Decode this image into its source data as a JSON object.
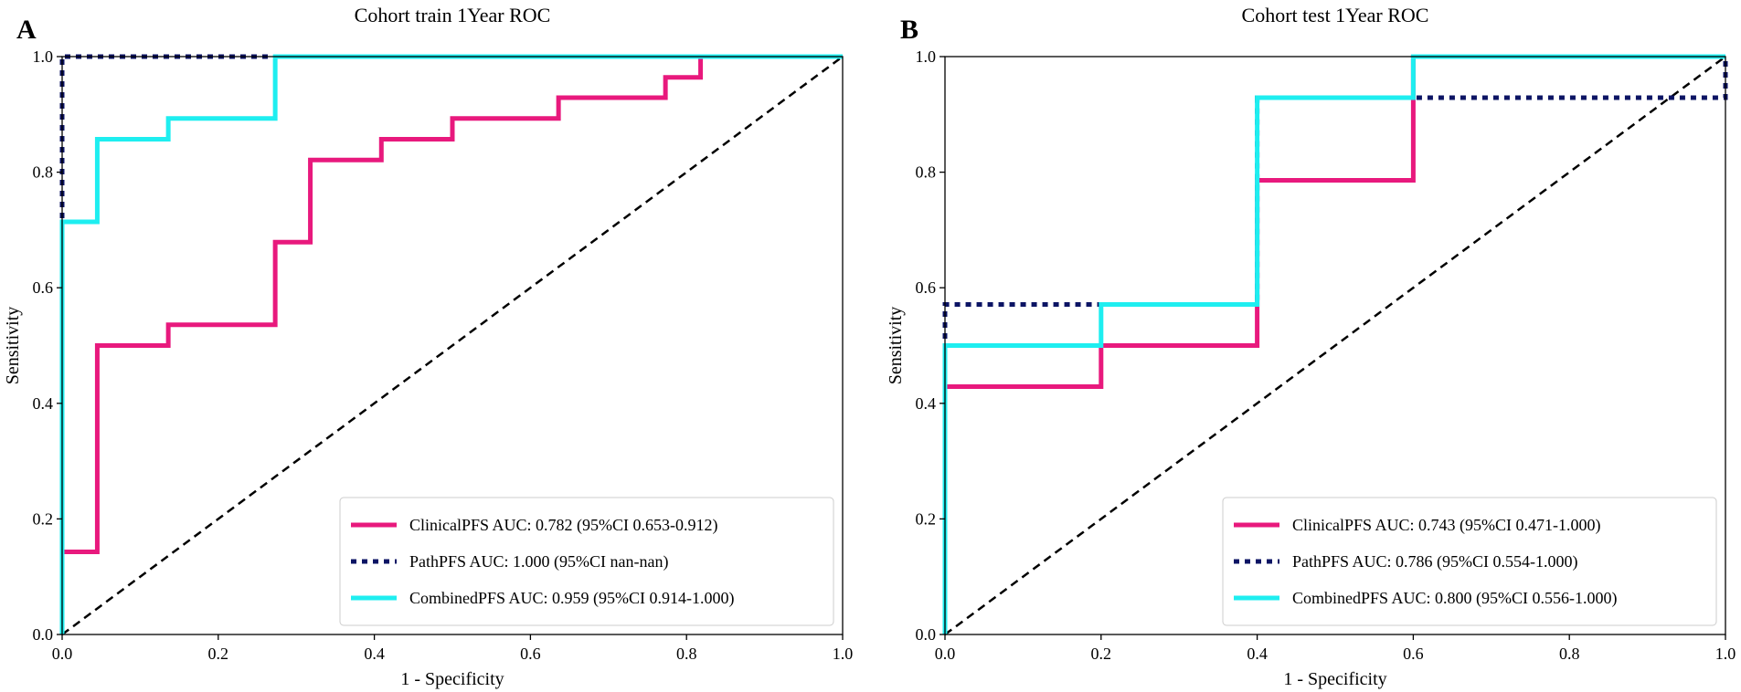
{
  "chart_data": [
    {
      "type": "line",
      "panel_label": "A",
      "title": "Cohort train 1Year ROC",
      "xlabel": "1 - Specificity",
      "ylabel": "Sensitivity",
      "xlim": [
        0.0,
        1.0
      ],
      "ylim": [
        0.0,
        1.0
      ],
      "x_ticks": [
        "0.0",
        "0.2",
        "0.4",
        "0.6",
        "0.8",
        "1.0"
      ],
      "y_ticks": [
        "0.0",
        "0.2",
        "0.4",
        "0.6",
        "0.8",
        "1.0"
      ],
      "legend_position": "lower-right",
      "series": [
        {
          "name": "ClinicalPFS AUC: 0.782 (95%CI 0.653-0.912)",
          "color": "#e8197d",
          "dash": "solid",
          "x": [
            0,
            0,
            0.045,
            0.045,
            0.136,
            0.136,
            0.273,
            0.273,
            0.318,
            0.318,
            0.409,
            0.409,
            0.5,
            0.5,
            0.636,
            0.636,
            0.773,
            0.773,
            0.818,
            0.818
          ],
          "y": [
            0,
            0.143,
            0.143,
            0.5,
            0.5,
            0.536,
            0.536,
            0.679,
            0.679,
            0.821,
            0.821,
            0.857,
            0.857,
            0.893,
            0.893,
            0.929,
            0.929,
            0.964,
            0.964,
            1.0
          ]
        },
        {
          "name": "PathPFS AUC: 1.000 (95%CI nan-nan)",
          "color": "#0c1464",
          "dash": "dotted",
          "x": [
            0,
            0,
            0,
            1.0
          ],
          "y": [
            0,
            0.714,
            1.0,
            1.0
          ]
        },
        {
          "name": "CombinedPFS AUC: 0.959 (95%CI 0.914-1.000)",
          "color": "#1eeef0",
          "dash": "solid",
          "x": [
            0,
            0,
            0.045,
            0.045,
            0.136,
            0.136,
            0.273,
            0.273,
            1.0
          ],
          "y": [
            0,
            0.714,
            0.714,
            0.857,
            0.857,
            0.893,
            0.893,
            1.0,
            1.0
          ]
        },
        {
          "name": "",
          "color": "#000000",
          "dash": "dashed",
          "x": [
            0,
            1.0
          ],
          "y": [
            0,
            1.0
          ]
        }
      ]
    },
    {
      "type": "line",
      "panel_label": "B",
      "title": "Cohort test 1Year ROC",
      "xlabel": "1 - Specificity",
      "ylabel": "Sensitivity",
      "xlim": [
        0.0,
        1.0
      ],
      "ylim": [
        0.0,
        1.0
      ],
      "x_ticks": [
        "0.0",
        "0.2",
        "0.4",
        "0.6",
        "0.8",
        "1.0"
      ],
      "y_ticks": [
        "0.0",
        "0.2",
        "0.4",
        "0.6",
        "0.8",
        "1.0"
      ],
      "legend_position": "lower-right",
      "series": [
        {
          "name": "ClinicalPFS AUC: 0.743 (95%CI 0.471-1.000)",
          "color": "#e8197d",
          "dash": "solid",
          "x": [
            0,
            0,
            0.2,
            0.2,
            0.4,
            0.4,
            0.6,
            0.6,
            1.0
          ],
          "y": [
            0,
            0.429,
            0.429,
            0.5,
            0.5,
            0.786,
            0.786,
            1.0,
            1.0
          ]
        },
        {
          "name": "PathPFS AUC: 0.786 (95%CI 0.554-1.000)",
          "color": "#0c1464",
          "dash": "dotted",
          "x": [
            0,
            0,
            0.2,
            0.2,
            0.4,
            0.4,
            1.0,
            1.0
          ],
          "y": [
            0,
            0.571,
            0.571,
            0.571,
            0.571,
            0.929,
            0.929,
            1.0
          ]
        },
        {
          "name": "CombinedPFS AUC: 0.800 (95%CI 0.556-1.000)",
          "color": "#1eeef0",
          "dash": "solid",
          "x": [
            0,
            0,
            0.2,
            0.2,
            0.4,
            0.4,
            0.6,
            0.6,
            1.0
          ],
          "y": [
            0,
            0.5,
            0.5,
            0.571,
            0.571,
            0.929,
            0.929,
            1.0,
            1.0
          ]
        },
        {
          "name": "",
          "color": "#000000",
          "dash": "dashed",
          "x": [
            0,
            1.0
          ],
          "y": [
            0,
            1.0
          ]
        }
      ]
    }
  ]
}
